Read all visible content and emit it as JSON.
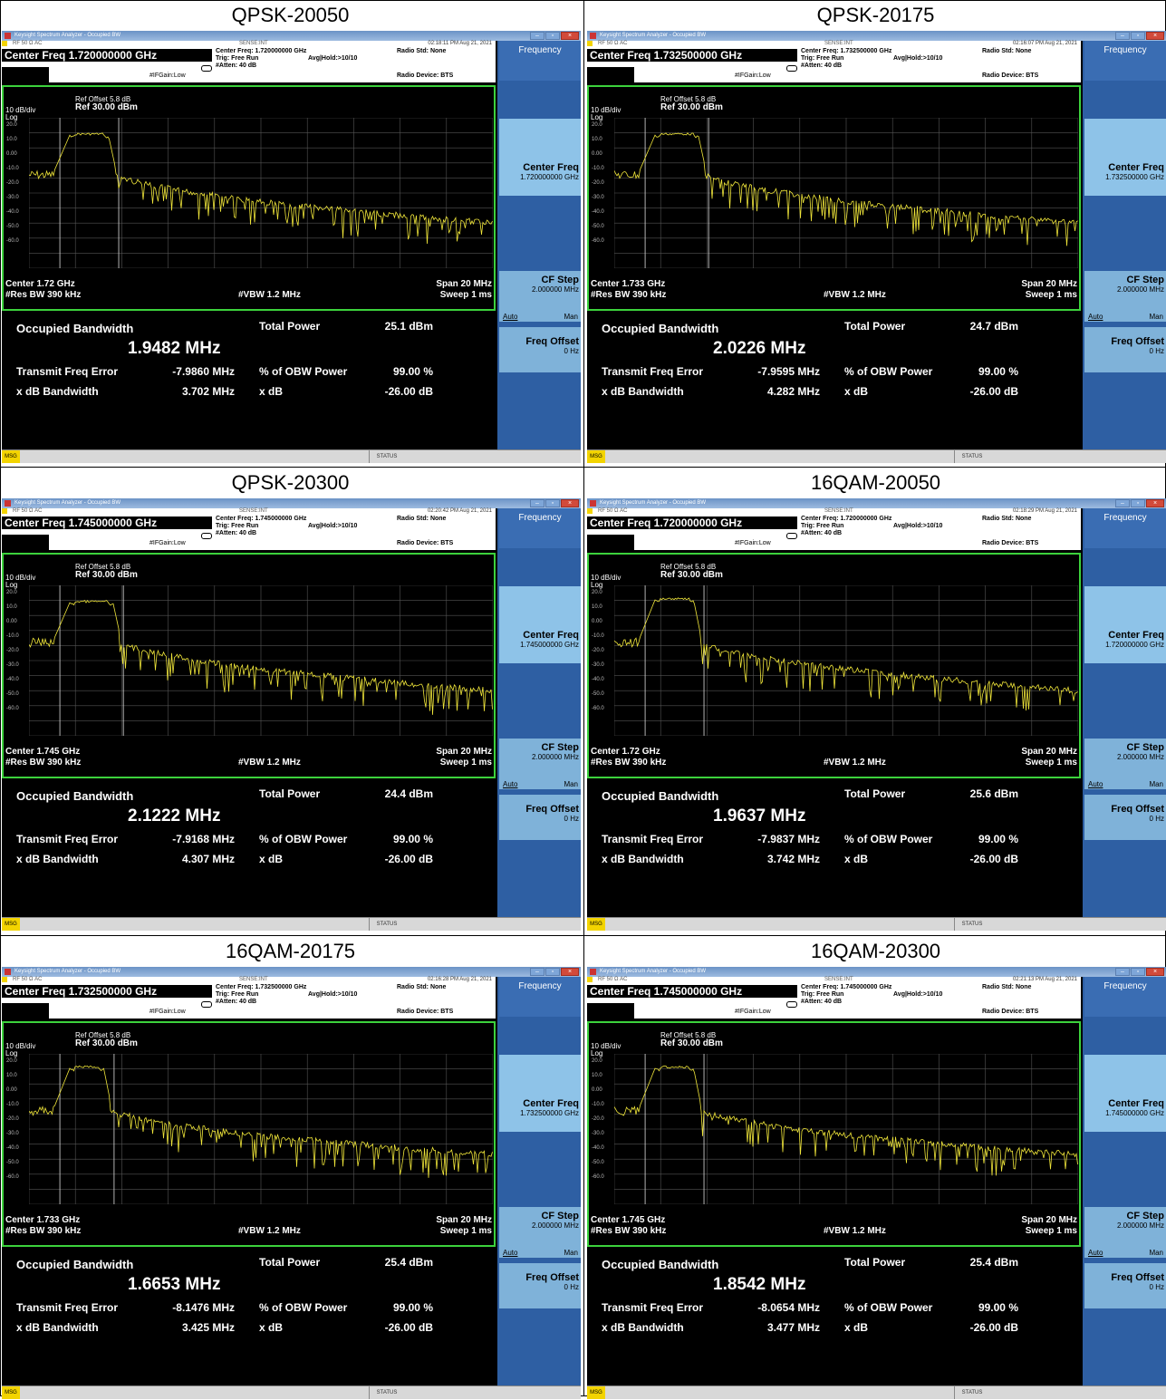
{
  "window_title": "Keysight Spectrum Analyzer - Occupied BW",
  "rf_line": "RF      50 Ω   AC",
  "sense": "SENSE:INT",
  "trig": "Trig: Free Run",
  "avg_hold": "Avg|Hold:>10/10",
  "atten": "#Atten: 40 dB",
  "ifgain": "#IFGain:Low",
  "radio_std": "Radio Std: None",
  "radio_device": "Radio Device: BTS",
  "ref_offset": "Ref Offset 5.8 dB",
  "ref_level": "Ref 30.00 dBm",
  "scale": "10 dB/div",
  "log": "Log",
  "y_ticks": [
    "20.0",
    "10.0",
    "0.00",
    "-10.0",
    "-20.0",
    "-30.0",
    "-40.0",
    "-50.0",
    "-60.0"
  ],
  "span": "Span 20 MHz",
  "rbw": "#Res BW  390 kHz",
  "vbw": "#VBW  1.2 MHz",
  "sweep": "Sweep  1 ms",
  "labels": {
    "occupied_bw": "Occupied Bandwidth",
    "total_power": "Total Power",
    "tx_freq_error": "Transmit Freq Error",
    "pct_obw": "% of OBW Power",
    "xdb_bw": "x dB Bandwidth",
    "xdb": "x dB",
    "pct_obw_value": "99.00 %",
    "xdb_value": "-26.00 dB"
  },
  "softkeys": {
    "menu": "Frequency",
    "center_freq": "Center Freq",
    "cf_step": "CF Step",
    "cf_step_value": "2.000000 MHz",
    "auto": "Auto",
    "man": "Man",
    "freq_offset": "Freq Offset",
    "freq_offset_value": "0 Hz"
  },
  "status_bar": {
    "msg": "MSG",
    "status": "STATUS"
  },
  "panels": [
    {
      "title": "QPSK-20050",
      "time": "02:18:11 PM Aug 21, 2021",
      "center_freq_header": "Center Freq 1.720000000 GHz",
      "center_freq_small": "Center Freq: 1.720000000 GHz",
      "center": "Center  1.72 GHz",
      "softkey_cf": "1.720000000 GHz",
      "obw": "1.9482 MHz",
      "total_power": "25.1 dBm",
      "tx_error": "-7.9860 MHz",
      "xdb_bw": "3.702 MHz",
      "trace": {
        "peak_db": 20,
        "peak_x": [
          0.09,
          0.17
        ],
        "floor_db": -38
      }
    },
    {
      "title": "QPSK-20175",
      "time": "02:16:07 PM Aug 21, 2021",
      "center_freq_header": "Center Freq 1.732500000 GHz",
      "center_freq_small": "Center Freq: 1.732500000 GHz",
      "center": "Center  1.733 GHz",
      "softkey_cf": "1.732500000 GHz",
      "obw": "2.0226 MHz",
      "total_power": "24.7 dBm",
      "tx_error": "-7.9595 MHz",
      "xdb_bw": "4.282 MHz",
      "trace": {
        "peak_db": 20,
        "peak_x": [
          0.09,
          0.18
        ],
        "floor_db": -38
      }
    },
    {
      "title": "QPSK-20300",
      "time": "02:20:42 PM Aug 21, 2021",
      "center_freq_header": "Center Freq 1.745000000 GHz",
      "center_freq_small": "Center Freq: 1.745000000 GHz",
      "center": "Center  1.745 GHz",
      "softkey_cf": "1.745000000 GHz",
      "obw": "2.1222 MHz",
      "total_power": "24.4 dBm",
      "tx_error": "-7.9168 MHz",
      "xdb_bw": "4.307 MHz",
      "trace": {
        "peak_db": 20,
        "peak_x": [
          0.09,
          0.18
        ],
        "floor_db": -38
      }
    },
    {
      "title": "16QAM-20050",
      "time": "02:18:29 PM Aug 21, 2021",
      "center_freq_header": "Center Freq 1.720000000 GHz",
      "center_freq_small": "Center Freq: 1.720000000 GHz",
      "center": "Center  1.72 GHz",
      "softkey_cf": "1.720000000 GHz",
      "obw": "1.9637 MHz",
      "total_power": "25.6 dBm",
      "tx_error": "-7.9837 MHz",
      "xdb_bw": "3.742 MHz",
      "trace": {
        "peak_db": 22,
        "peak_x": [
          0.09,
          0.17
        ],
        "floor_db": -38
      }
    },
    {
      "title": "16QAM-20175",
      "time": "02:16:28 PM Aug 21, 2021",
      "center_freq_header": "Center Freq 1.732500000 GHz",
      "center_freq_small": "Center Freq: 1.732500000 GHz",
      "center": "Center  1.733 GHz",
      "softkey_cf": "1.732500000 GHz",
      "obw": "1.6653 MHz",
      "total_power": "25.4 dBm",
      "tx_error": "-8.1476 MHz",
      "xdb_bw": "3.425 MHz",
      "trace": {
        "peak_db": 22,
        "peak_x": [
          0.09,
          0.16
        ],
        "floor_db": -35
      }
    },
    {
      "title": "16QAM-20300",
      "time": "02:21:13 PM Aug 21, 2021",
      "center_freq_header": "Center Freq 1.745000000 GHz",
      "center_freq_small": "Center Freq: 1.745000000 GHz",
      "center": "Center  1.745 GHz",
      "softkey_cf": "1.745000000 GHz",
      "obw": "1.8542 MHz",
      "total_power": "25.4 dBm",
      "tx_error": "-8.0654 MHz",
      "xdb_bw": "3.477 MHz",
      "trace": {
        "peak_db": 22,
        "peak_x": [
          0.09,
          0.17
        ],
        "floor_db": -35
      }
    }
  ]
}
